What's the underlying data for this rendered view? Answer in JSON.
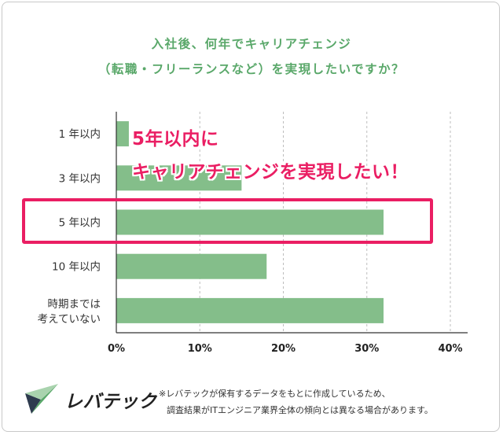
{
  "chart_data": {
    "type": "bar",
    "orientation": "horizontal",
    "title_line1": "入社後、何年でキャリアチェンジ",
    "title_line2": "（転職・フリーランスなど）を実現したいですか？",
    "categories": [
      "1年以内",
      "3年以内",
      "5年以内",
      "10年以内",
      [
        "時期までは",
        "考えていない"
      ]
    ],
    "category_labels": [
      "1 年以内",
      "3 年以内",
      "5 年以内",
      "10 年以内",
      "時期までは|考えていない"
    ],
    "values": [
      1.5,
      15,
      32,
      18,
      32
    ],
    "xlim": [
      0,
      40
    ],
    "ticks": [
      0,
      10,
      20,
      30,
      40
    ],
    "tick_labels": [
      "0%",
      "10%",
      "20%",
      "30%",
      "40%"
    ],
    "grid": true,
    "bar_color": "#84be8a",
    "highlighted_category": "5 年以内"
  },
  "callout": {
    "line1": "5年以内に",
    "line2": "キャリアチェンジを実現したい！",
    "color": "#ea1e63"
  },
  "brand": {
    "name": "レバテック"
  },
  "footnote": {
    "line1": "※レバテックが保有するデータをもとに作成しているため、",
    "line2": "調査結果がITエンジニア業界全体の傾向とは異なる場合があります。"
  },
  "colors": {
    "title": "#5aa86a",
    "bar": "#84be8a",
    "highlight": "#ea1e63"
  }
}
